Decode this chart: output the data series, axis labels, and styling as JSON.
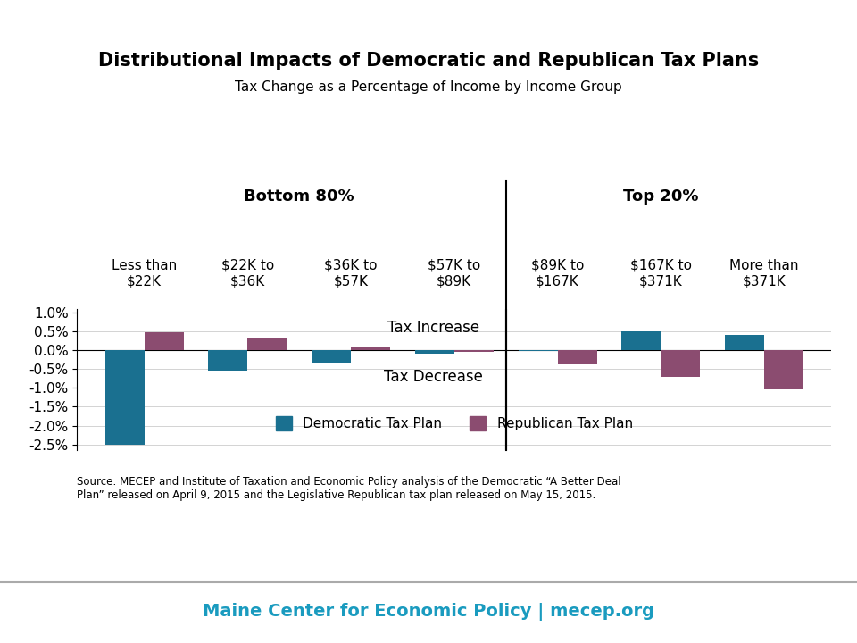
{
  "title": "Distributional Impacts of Democratic and Republican Tax Plans",
  "subtitle": "Tax Change as a Percentage of Income by Income Group",
  "categories": [
    "Less than\n$22K",
    "$22K to\n$36K",
    "$36K to\n$57K",
    "$57K to\n$89K",
    "$89K to\n$167K",
    "$167K to\n$371K",
    "More than\n$371K"
  ],
  "democratic_values": [
    -2.5,
    -0.55,
    -0.35,
    -0.1,
    -0.03,
    0.5,
    0.4
  ],
  "republican_values": [
    0.47,
    0.32,
    0.08,
    -0.05,
    -0.37,
    -0.72,
    -1.05
  ],
  "dem_color": "#1a7090",
  "rep_color": "#8b4c70",
  "bottom80_label": "Bottom 80%",
  "top20_label": "Top 20%",
  "tax_increase_label": "Tax Increase",
  "tax_decrease_label": "Tax Decrease",
  "legend_dem": "Democratic Tax Plan",
  "legend_rep": "Republican Tax Plan",
  "source_text": "Source: MECEP and Institute of Taxation and Economic Policy analysis of the Democratic “A Better Deal\nPlan” released on April 9, 2015 and the Legislative Republican tax plan released on May 15, 2015.",
  "footer_text": "Maine Center for Economic Policy | mecep.org",
  "footer_color": "#1a9bbf",
  "ylim": [
    -2.65,
    1.1
  ],
  "yticks": [
    -2.5,
    -2.0,
    -1.5,
    -1.0,
    -0.5,
    0.0,
    0.5,
    1.0
  ],
  "bar_width": 0.38,
  "bg_color": "#ffffff"
}
